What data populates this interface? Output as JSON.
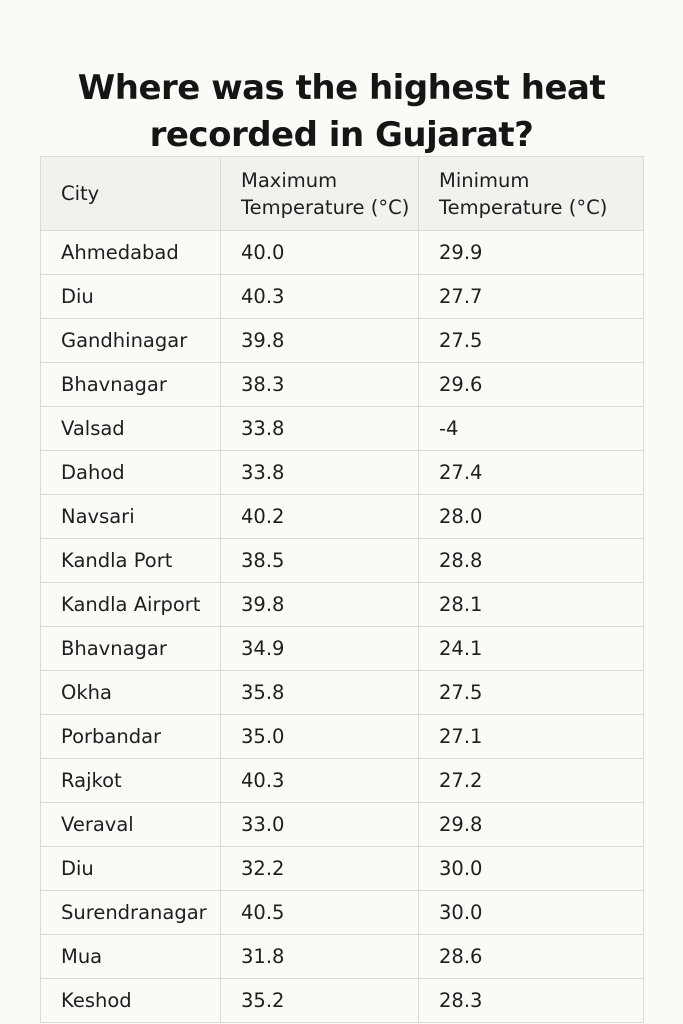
{
  "title": {
    "line1": "Where was the highest heat",
    "line2": "recorded in Gujarat?"
  },
  "table": {
    "headers": {
      "city": "City",
      "max_line1": "Maximum",
      "max_line2": "Temperature (°C)",
      "min_line1": "Minimum",
      "min_line2": "Temperature (°C)"
    },
    "rows": [
      {
        "city": "Ahmedabad",
        "max": "40.0",
        "min": "29.9"
      },
      {
        "city": "Diu",
        "max": "40.3",
        "min": "27.7"
      },
      {
        "city": "Gandhinagar",
        "max": "39.8",
        "min": "27.5"
      },
      {
        "city": "Bhavnagar",
        "max": "38.3",
        "min": "29.6"
      },
      {
        "city": "Valsad",
        "max": "33.8",
        "min": "-4"
      },
      {
        "city": "Dahod",
        "max": "33.8",
        "min": "27.4"
      },
      {
        "city": "Navsari",
        "max": "40.2",
        "min": "28.0"
      },
      {
        "city": "Kandla Port",
        "max": "38.5",
        "min": "28.8"
      },
      {
        "city": "Kandla Airport",
        "max": "39.8",
        "min": "28.1"
      },
      {
        "city": "Bhavnagar",
        "max": "34.9",
        "min": "24.1"
      },
      {
        "city": "Okha",
        "max": "35.8",
        "min": "27.5"
      },
      {
        "city": "Porbandar",
        "max": "35.0",
        "min": "27.1"
      },
      {
        "city": "Rajkot",
        "max": "40.3",
        "min": "27.2"
      },
      {
        "city": "Veraval",
        "max": "33.0",
        "min": "29.8"
      },
      {
        "city": "Diu",
        "max": "32.2",
        "min": "30.0"
      },
      {
        "city": "Surendranagar",
        "max": "40.5",
        "min": "30.0"
      },
      {
        "city": "Mua",
        "max": "31.8",
        "min": "28.6"
      },
      {
        "city": "Keshod",
        "max": "35.2",
        "min": "28.3"
      }
    ]
  }
}
